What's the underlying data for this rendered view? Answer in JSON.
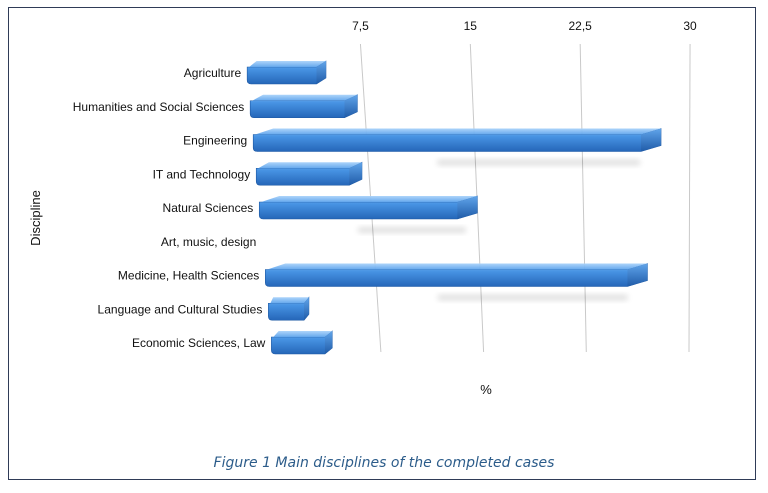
{
  "chart_data": {
    "type": "bar",
    "orientation": "horizontal",
    "categories": [
      "Agriculture",
      "Humanities and Social Sciences",
      "Engineering",
      "IT and Technology",
      "Natural Sciences",
      "Art, music, design",
      "Medicine, Health Sciences",
      "Language and Cultural Studies",
      "Economic Sciences, Law"
    ],
    "values": [
      5,
      7,
      28,
      7,
      15,
      0,
      27,
      2.5,
      4
    ],
    "xlabel": "%",
    "ylabel": "Discipline",
    "xlim": [
      0,
      30
    ],
    "xticks": [
      "7,5",
      "15",
      "22,5",
      "30"
    ],
    "grid": true,
    "bar_color": "#3d8de0",
    "style": "3d"
  },
  "caption": "Figure 1 Main disciplines of the completed cases"
}
